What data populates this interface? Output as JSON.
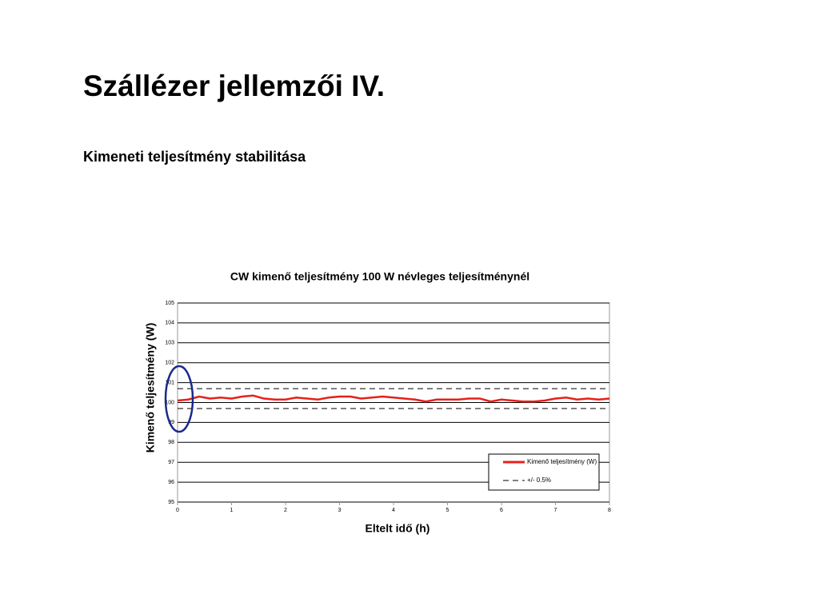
{
  "slide": {
    "title": "Szállézer jellemzői IV.",
    "subtitle": "Kimeneti teljesítmény stabilitása"
  },
  "chart_data": {
    "type": "line",
    "title": "CW kimenő teljesítmény 100 W névleges teljesítménynél",
    "x_label": "Eltelt idő (h)",
    "y_label": "Kimenő teljesítmény (W)",
    "x": [
      0,
      0.2,
      0.4,
      0.6,
      0.8,
      1,
      1.2,
      1.4,
      1.6,
      1.8,
      2,
      2.2,
      2.4,
      2.6,
      2.8,
      3,
      3.2,
      3.4,
      3.6,
      3.8,
      4,
      4.2,
      4.4,
      4.6,
      4.8,
      5,
      5.2,
      5.4,
      5.6,
      5.8,
      6,
      6.2,
      6.4,
      6.6,
      6.8,
      7,
      7.2,
      7.4,
      7.6,
      7.8,
      8
    ],
    "series": [
      {
        "name": "Kimenő teljesítmény (W)",
        "color": "#e8201a",
        "values": [
          100.1,
          100.15,
          100.3,
          100.2,
          100.25,
          100.2,
          100.3,
          100.35,
          100.2,
          100.15,
          100.15,
          100.25,
          100.2,
          100.15,
          100.25,
          100.3,
          100.3,
          100.2,
          100.25,
          100.3,
          100.25,
          100.2,
          100.15,
          100.05,
          100.15,
          100.15,
          100.15,
          100.2,
          100.2,
          100.05,
          100.15,
          100.1,
          100.05,
          100.05,
          100.1,
          100.2,
          100.25,
          100.15,
          100.2,
          100.15,
          100.2
        ]
      }
    ],
    "band": {
      "name": "+/- 0.5%",
      "color": "#000000",
      "upper": 100.7,
      "lower": 99.7
    },
    "xlim": [
      0,
      8
    ],
    "xticks": [
      0,
      1,
      2,
      3,
      4,
      5,
      6,
      7,
      8
    ],
    "ylim": [
      95,
      105
    ],
    "yticks": [
      95,
      96,
      97,
      98,
      99,
      100,
      101,
      102,
      103,
      104,
      105
    ],
    "grid": true,
    "legend": "bottom-right"
  }
}
